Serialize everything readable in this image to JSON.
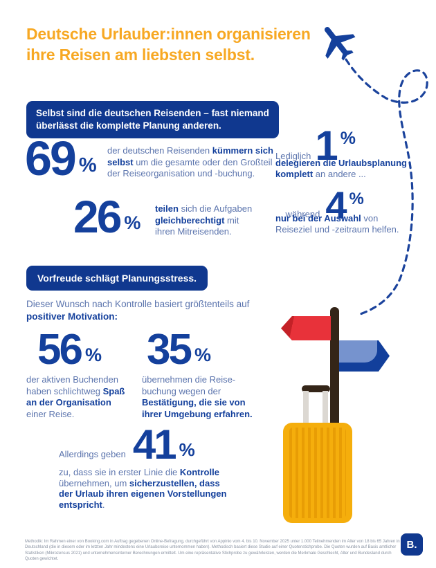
{
  "colors": {
    "title_orange": "#F7A823",
    "dark_blue": "#14409C",
    "banner_blue": "#10388F",
    "body_text_blue": "#5B74AD",
    "suitcase_yellow": "#F5AE0C",
    "suitcase_stripe": "#E89D05",
    "signpost_red": "#E8323A",
    "signpost_blue": "#123F9B",
    "pole_brown": "#342518",
    "footer_gray": "#8A93A2"
  },
  "icons": {
    "plane": "airplane-icon",
    "trail": "dotted-flight-path",
    "illustration": [
      "signpost-red-arrow-left",
      "signpost-blue-arrow-right",
      "signpost-pole",
      "rolling-suitcase"
    ]
  },
  "header": {
    "title": [
      {
        "t": "Deutsche Urlauber:innen organisieren"
      },
      {
        "br": true
      },
      {
        "t": "ihre Reisen am liebsten selbst."
      }
    ]
  },
  "sections": {
    "first_banner": [
      {
        "t": "Selbst sind die deutschen Reisenden – fast niemand"
      },
      {
        "br": true
      },
      {
        "t": "überlässt die komplette Planung anderen."
      }
    ],
    "second_banner": "Vorfreude schlägt Planungsstress.",
    "motivation_intro": [
      {
        "t": "Dieser Wunsch nach Kontrolle basiert größtenteils auf"
      },
      {
        "br": true
      },
      {
        "t": "positiver Motivation:",
        "b": true
      }
    ]
  },
  "stats": {
    "self_organize": {
      "value": "69",
      "unit": "%",
      "desc": [
        {
          "t": "der deutschen Reisenden "
        },
        {
          "t": "kümmern sich",
          "b": true
        },
        {
          "br": true
        },
        {
          "t": "selbst",
          "b": true
        },
        {
          "t": " um die gesamte oder den Großteil"
        },
        {
          "br": true
        },
        {
          "t": "der Reiseorganisation und -buchung."
        }
      ]
    },
    "delegate_all": {
      "lead": "Lediglich",
      "value": "1",
      "unit": "%",
      "desc": [
        {
          "t": "delegieren die Urlaubsplanung",
          "b": true
        },
        {
          "br": true
        },
        {
          "t": "komplett",
          "b": true
        },
        {
          "t": " an andere ..."
        }
      ]
    },
    "share_equally": {
      "value": "26",
      "unit": "%",
      "desc": [
        {
          "t": "teilen",
          "b": true
        },
        {
          "t": " sich die Aufgaben"
        },
        {
          "br": true
        },
        {
          "t": "gleichberechtigt",
          "b": true
        },
        {
          "t": " mit"
        },
        {
          "br": true
        },
        {
          "t": "ihren Mitreisenden."
        }
      ]
    },
    "help_selection": {
      "lead": "... während",
      "value": "4",
      "unit": "%",
      "desc": [
        {
          "t": "nur bei der Auswahl",
          "b": true
        },
        {
          "t": " von"
        },
        {
          "br": true
        },
        {
          "t": "Reiseziel und -zeitraum helfen."
        }
      ]
    },
    "fun_organizing": {
      "value": "56",
      "unit": "%",
      "desc": [
        {
          "t": "der aktiven Buchenden"
        },
        {
          "br": true
        },
        {
          "t": "haben schlichtweg "
        },
        {
          "t": "Spaß",
          "b": true
        },
        {
          "br": true
        },
        {
          "t": "an der Organisation",
          "b": true
        },
        {
          "br": true
        },
        {
          "t": "einer Reise."
        }
      ]
    },
    "confirmation": {
      "value": "35",
      "unit": "%",
      "desc": [
        {
          "t": "übernehmen die Reise-"
        },
        {
          "br": true
        },
        {
          "t": "buchung wegen der"
        },
        {
          "br": true
        },
        {
          "t": "Bestätigung, die sie von",
          "b": true
        },
        {
          "br": true
        },
        {
          "t": "ihrer Umgebung erfahren.",
          "b": true
        }
      ]
    },
    "control": {
      "lead": "Allerdings geben",
      "value": "41",
      "unit": "%",
      "desc": [
        {
          "t": "zu, dass sie in erster Linie die "
        },
        {
          "t": "Kontrolle",
          "b": true
        },
        {
          "br": true
        },
        {
          "t": "übernehmen, um "
        },
        {
          "t": "sicherzustellen, dass",
          "b": true
        },
        {
          "br": true
        },
        {
          "t": "der Urlaub ihren eigenen Vorstellungen",
          "b": true
        },
        {
          "br": true
        },
        {
          "t": "entspricht",
          "b": true
        },
        {
          "t": "."
        }
      ]
    }
  },
  "footer": {
    "methodology": "Methodik: Im Rahmen einer von Booking.com in Auftrag gegebenen Online-Befragung, durchgeführt von Appinio vom 4. bis 10. November 2025 unter 1.000 Teilnehmenden im Alter von 18 bis 65 Jahren in Deutschland (die in diesem oder im letzten Jahr mindestens eine Urlaubsreise unternommen haben). Methodisch basiert diese Studie auf einer Quotenstichprobe. Die Quoten wurden auf Basis amtlicher Statistiken (Mikrozensus 2021) und unternehmensinterner Berechnungen ermittelt. Um eine repräsentative Stichprobe zu gewährleisten, werden die Merkmale Geschlecht, Alter und Bundesland durch Quoten gewichtet.",
    "logo": "B."
  }
}
